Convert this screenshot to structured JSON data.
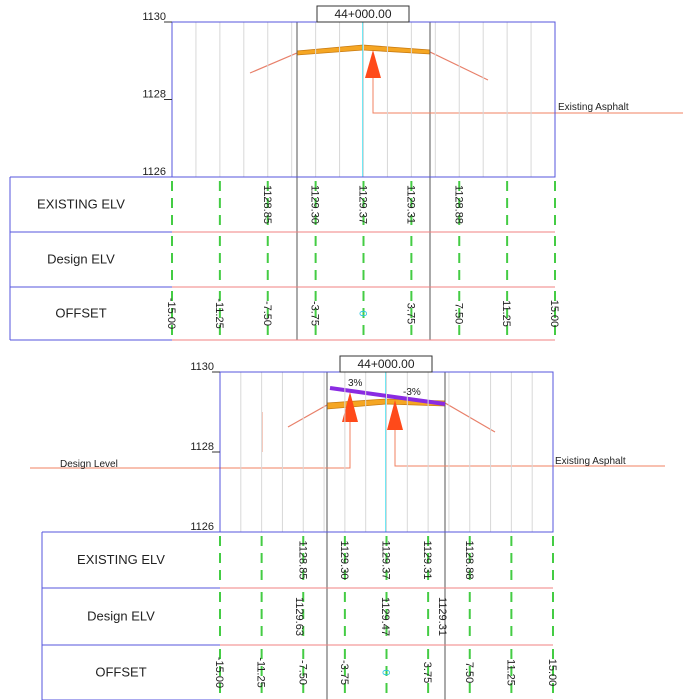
{
  "sections": [
    {
      "station": "44+000.00",
      "elevation_labels": [
        "1130",
        "1128",
        "1126"
      ],
      "rows": [
        {
          "label": "EXISTING ELV",
          "values": [
            "1128.85",
            "1129.30",
            "1129.37",
            "1129.31",
            "1128.88"
          ]
        },
        {
          "label": "Design ELV"
        },
        {
          "label": "OFFSET",
          "values": [
            "-15.00",
            "-11.25",
            "-7.50",
            "-3.75",
            "0",
            "3.75",
            "7.50",
            "11.25",
            "15.00"
          ]
        }
      ],
      "annotations": [
        "Existing Asphalt"
      ]
    },
    {
      "station": "44+000.00",
      "elevation_labels": [
        "1130",
        "1128",
        "1126"
      ],
      "rows": [
        {
          "label": "EXISTING ELV",
          "values": [
            "1128.85",
            "1129.30",
            "1129.37",
            "1129.31",
            "1128.88"
          ]
        },
        {
          "label": "Design ELV",
          "values": [
            "1129.63",
            "1129.47",
            "1129.31"
          ]
        },
        {
          "label": "OFFSET",
          "values": [
            "-15.00",
            "-11.25",
            "-7.50",
            "-3.75",
            "0",
            "3.75",
            "7.50",
            "11.25",
            "15.00"
          ]
        }
      ],
      "slope_labels": [
        "3%",
        "-3%"
      ],
      "annotations": [
        "Design Level",
        "Existing Asphalt"
      ]
    }
  ]
}
